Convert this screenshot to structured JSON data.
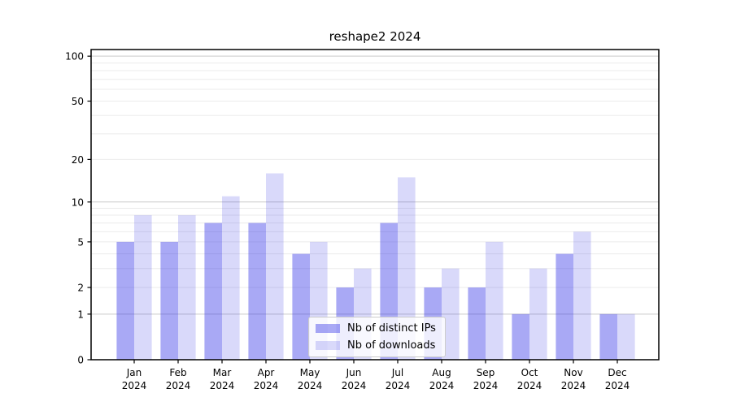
{
  "chart_data": {
    "type": "bar",
    "title": "reshape2 2024",
    "categories": [
      "Jan 2024",
      "Feb 2024",
      "Mar 2024",
      "Apr 2024",
      "May 2024",
      "Jun 2024",
      "Jul 2024",
      "Aug 2024",
      "Sep 2024",
      "Oct 2024",
      "Nov 2024",
      "Dec 2024"
    ],
    "series": [
      {
        "name": "Nb of distinct IPs",
        "color": "rgba(51,51,230,0.42)",
        "values": [
          5,
          5,
          7,
          7,
          4,
          2,
          7,
          2,
          2,
          1,
          4,
          1
        ]
      },
      {
        "name": "Nb of downloads",
        "color": "rgba(51,51,230,0.19)",
        "values": [
          8,
          8,
          11,
          16,
          5,
          3,
          15,
          3,
          5,
          3,
          6,
          1
        ]
      }
    ],
    "xlabel": "",
    "ylabel": "",
    "yscale": "log1p",
    "ylim": [
      0,
      111
    ],
    "yticks": [
      0,
      1,
      2,
      5,
      10,
      20,
      50,
      100
    ],
    "grid": {
      "on": true,
      "minor_lines": [
        2,
        3,
        4,
        5,
        6,
        7,
        8,
        9,
        20,
        30,
        40,
        50,
        60,
        70,
        80,
        90
      ],
      "major_lines": [
        1,
        10,
        100
      ],
      "minor_color": "#ebebeb",
      "major_color": "#c9c9c9"
    },
    "legend": {
      "position": "lower-center-inside",
      "labels": [
        "Nb of distinct IPs",
        "Nb of downloads"
      ]
    },
    "colors": {
      "axis": "#000000",
      "text": "#000000",
      "background": "#ffffff"
    }
  }
}
